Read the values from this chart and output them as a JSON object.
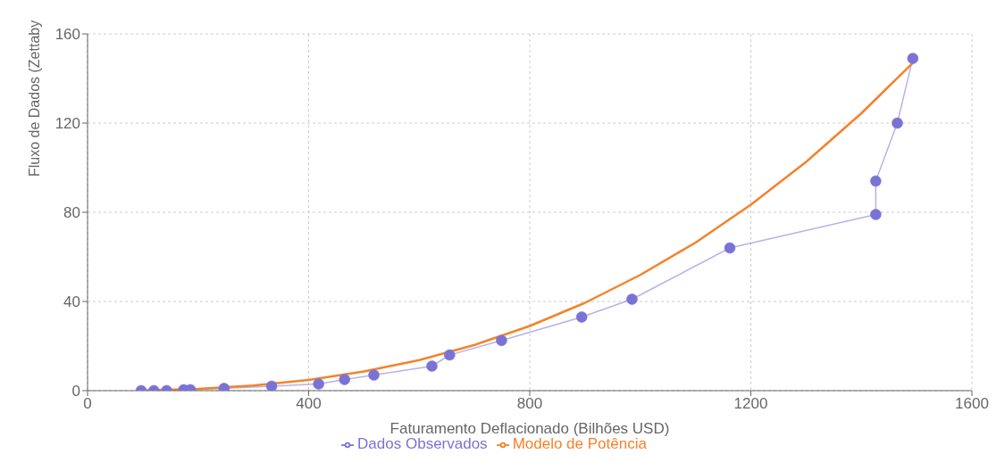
{
  "chart_data": {
    "type": "line",
    "xlabel": "Faturamento Deflacionado (Bilhões USD)",
    "ylabel": "Fluxo de Dados (Zettaby",
    "xlim": [
      0,
      1600
    ],
    "xticks": [
      0,
      400,
      800,
      1200,
      1600
    ],
    "ylim": [
      0,
      160
    ],
    "yticks": [
      0,
      40,
      80,
      120,
      160
    ],
    "grid": true,
    "legend": "bottom",
    "series": [
      {
        "name": "Dados Observados",
        "color": "#7b72d6",
        "marker": "circle",
        "x": [
          97,
          120,
          143,
          174,
          186,
          247,
          333,
          418,
          465,
          518,
          623,
          655,
          749,
          894,
          985,
          1162,
          1426,
          1426,
          1465,
          1493
        ],
        "values": [
          0,
          0,
          0,
          0.4,
          0.4,
          1,
          2,
          3,
          5,
          7,
          11,
          16,
          22.5,
          33,
          41,
          64,
          79,
          94,
          120,
          149
        ]
      },
      {
        "name": "Modelo de Potência",
        "color": "#f5822a",
        "marker": "none",
        "x": [
          100,
          200,
          300,
          400,
          500,
          600,
          700,
          800,
          900,
          1000,
          1100,
          1200,
          1300,
          1400,
          1493
        ],
        "values": [
          0.1,
          0.8,
          2.3,
          4.8,
          8.6,
          13.7,
          20.5,
          29,
          39.4,
          51.9,
          66.4,
          83.4,
          102.6,
          124.4,
          147
        ]
      }
    ]
  }
}
